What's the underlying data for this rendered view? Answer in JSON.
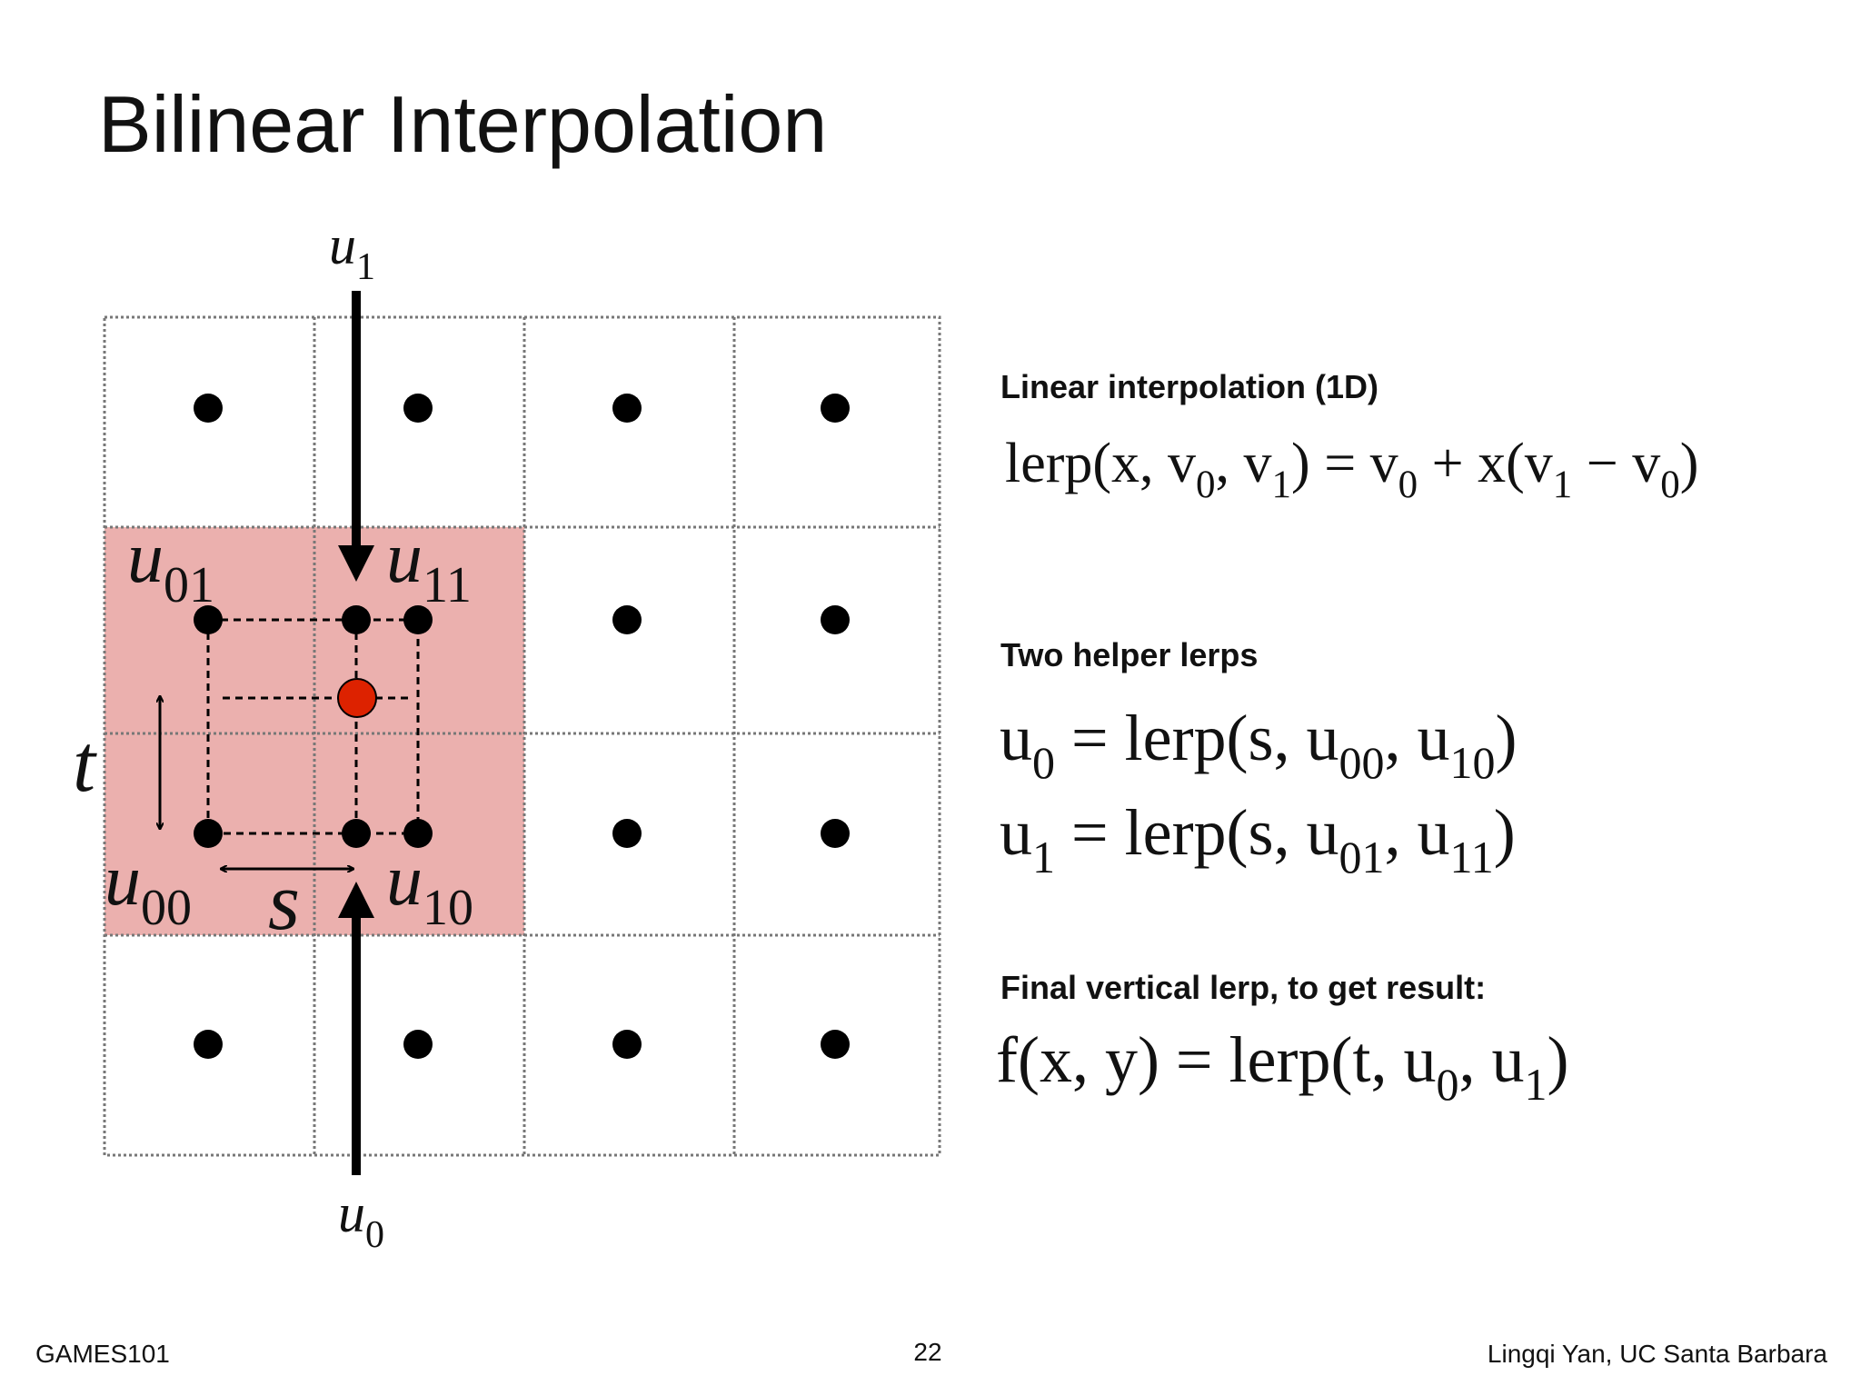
{
  "title": "Bilinear Interpolation",
  "diagram": {
    "labels": [
      [
        "u",
        {
          "sub": "1"
        }
      ],
      [
        "u",
        {
          "sub": "0"
        }
      ],
      [
        "u",
        {
          "sub": "01"
        }
      ],
      [
        "u",
        {
          "sub": "11"
        }
      ],
      [
        "u",
        {
          "sub": "00"
        }
      ],
      [
        "u",
        {
          "sub": "10"
        }
      ],
      [
        "t"
      ],
      [
        "s"
      ]
    ]
  },
  "sections": [
    {
      "heading": "Linear interpolation (1D)",
      "formulas": [
        [
          "lerp(x, v",
          {
            "sub": "0"
          },
          ", v",
          {
            "sub": "1"
          },
          ") = v",
          {
            "sub": "0"
          },
          " + x(v",
          {
            "sub": "1"
          },
          " − v",
          {
            "sub": "0"
          },
          ")"
        ]
      ]
    },
    {
      "heading": "Two helper lerps",
      "formulas": [
        [
          "u",
          {
            "sub": "0"
          },
          " = lerp(s, u",
          {
            "sub": "00"
          },
          ", u",
          {
            "sub": "10"
          },
          ")"
        ],
        [
          "u",
          {
            "sub": "1"
          },
          " = lerp(s, u",
          {
            "sub": "01"
          },
          ", u",
          {
            "sub": "11"
          },
          ")"
        ]
      ]
    },
    {
      "heading": "Final vertical lerp, to get result:",
      "formulas": [
        [
          "f(x, y) = lerp(t, u",
          {
            "sub": "0"
          },
          ", u",
          {
            "sub": "1"
          },
          ")"
        ]
      ]
    }
  ],
  "footer": {
    "left": "GAMES101",
    "center": "22",
    "right": "Lingqi Yan, UC Santa Barbara"
  }
}
